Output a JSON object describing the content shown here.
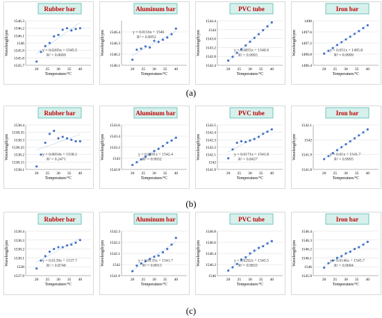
{
  "colors": {
    "title_text": "#c00000",
    "title_fill": "#d6f0ec",
    "title_border": "#4fb8ad",
    "point": "#4472c4",
    "trend": "#9dc3e6",
    "grid": "#d9d9d9"
  },
  "rows": [
    {
      "label": "(a)",
      "charts": [
        {
          "title": "Rubber bar",
          "x_range": [
            15,
            45
          ],
          "x_ticks": [
            "20",
            "25",
            "30",
            "35",
            "40"
          ],
          "y_range": [
            1545.7,
            1546.3
          ],
          "y_ticks": [
            "1545.7",
            "1545.8",
            "1545.9",
            "1546",
            "1546.1",
            "1546.2",
            "1546.3"
          ],
          "equation": "y = 0.0205x + 1545.5",
          "r2": "R² = 0.8009",
          "eq_pos": "lower"
        },
        {
          "title": "Aluminum bar",
          "x_range": [
            15,
            45
          ],
          "x_ticks": [
            "20",
            "25",
            "30",
            "35",
            "40"
          ],
          "y_range": [
            1546.1,
            1546.5
          ],
          "y_ticks": [
            "1546.1",
            "1546.2",
            "1546.3",
            "1546.4"
          ],
          "equation": "y = 0.0116x + 1546",
          "r2": "R² = 0.8952",
          "eq_pos": "upper"
        },
        {
          "title": "PVC tube",
          "x_range": [
            15,
            45
          ],
          "x_ticks": [
            "20",
            "25",
            "30",
            "35",
            "40"
          ],
          "y_range": [
            1542.4,
            1544.4
          ],
          "y_ticks": [
            "1542.4",
            "1542.8",
            "1543.2",
            "1543.6",
            "1544",
            "1544.4"
          ],
          "equation": "y = 0.0855x + 1540.9",
          "r2": "R² = 0.9993",
          "eq_pos": "lower"
        },
        {
          "title": "Iron bar",
          "x_range": [
            15,
            45
          ],
          "x_ticks": [
            "20",
            "25",
            "30",
            "35",
            "40"
          ],
          "y_range": [
            1496.4,
            1498
          ],
          "y_ticks": [
            "1496.4",
            "1496.8",
            "1497.2",
            "1497.6",
            "1498"
          ],
          "equation": "y = 0.051x + 1495.8",
          "r2": "R² = 0.9999",
          "eq_pos": "lower"
        }
      ]
    },
    {
      "label": "(b)",
      "charts": [
        {
          "title": "Rubber bar",
          "x_range": [
            15,
            45
          ],
          "x_ticks": [
            "20",
            "25",
            "30",
            "35",
            "40"
          ],
          "y_range": [
            1538.1,
            1538.4
          ],
          "y_ticks": [
            "1538.1",
            "1538.15",
            "1538.2",
            "1538.25",
            "1538.3",
            "1538.35",
            "1538.4"
          ],
          "equation": "y = 0.0054x + 1538.1",
          "r2": "R² = 0.2471",
          "eq_pos": "lower"
        },
        {
          "title": "Aluminum bar",
          "x_range": [
            15,
            45
          ],
          "x_ticks": [
            "20",
            "25",
            "30",
            "35",
            "40"
          ],
          "y_range": [
            1542.8,
            1543.6
          ],
          "y_ticks": [
            "1542.8",
            "1543",
            "1543.2",
            "1543.4",
            "1543.6"
          ],
          "equation": "y = 0.0241x + 1542.4",
          "r2": "R² = 0.9932",
          "eq_pos": "lower"
        },
        {
          "title": "PVC tube",
          "x_range": [
            15,
            45
          ],
          "x_ticks": [
            "20",
            "25",
            "30",
            "35",
            "40"
          ],
          "y_range": [
            1541.9,
            1542.5
          ],
          "y_ticks": [
            "1541.9",
            "1542",
            "1542.1",
            "1542.2",
            "1542.3",
            "1542.4",
            "1542.5"
          ],
          "equation": "y = 0.0171x + 1541.8",
          "r2": "R² = 0.8437",
          "eq_pos": "lower"
        },
        {
          "title": "Iron bar",
          "x_range": [
            15,
            45
          ],
          "x_ticks": [
            "20",
            "25",
            "30",
            "35",
            "40"
          ],
          "y_range": [
            1541.8,
            1542.1
          ],
          "y_ticks": [
            "1541.8",
            "1541.9",
            "1542",
            "1542.1"
          ],
          "equation": "y = 0.01x + 1541.7",
          "r2": "R² = 0.9995",
          "eq_pos": "lower"
        }
      ]
    },
    {
      "label": "(c)",
      "charts": [
        {
          "title": "Rubber bar",
          "x_range": [
            15,
            45
          ],
          "x_ticks": [
            "20",
            "25",
            "30",
            "35",
            "40"
          ],
          "y_range": [
            1537.9,
            1538.4
          ],
          "y_ticks": [
            "1537.9",
            "1538",
            "1538.1",
            "1538.2",
            "1538.3",
            "1538.4"
          ],
          "equation": "y = 0.0139x + 1537.7",
          "r2": "R² = 0.8748",
          "eq_pos": "lower"
        },
        {
          "title": "Aluminum bar",
          "x_range": [
            15,
            45
          ],
          "x_ticks": [
            "20",
            "25",
            "30",
            "35",
            "40"
          ],
          "y_range": [
            1541.9,
            1542.3
          ],
          "y_ticks": [
            "1541.9",
            "1542",
            "1542.1",
            "1542.2",
            "1542.3"
          ],
          "equation": "y = 0.0135x + 1541.7",
          "r2": "R² = 0.8913",
          "eq_pos": "lower"
        },
        {
          "title": "PVC tube",
          "x_range": [
            15,
            45
          ],
          "x_ticks": [
            "20",
            "25",
            "30",
            "35",
            "40"
          ],
          "y_range": [
            1546,
            1546.8
          ],
          "y_ticks": [
            "1546",
            "1546.2",
            "1546.4",
            "1546.6",
            "1546.8"
          ],
          "equation": "y = 0.0292x + 1545.5",
          "r2": "R² = 0.9833",
          "eq_pos": "lower"
        },
        {
          "title": "Iron bar",
          "x_range": [
            15,
            45
          ],
          "x_ticks": [
            "20",
            "25",
            "30",
            "35",
            "40"
          ],
          "y_range": [
            1545.9,
            1546.4
          ],
          "y_ticks": [
            "1545.9",
            "1546",
            "1546.1",
            "1546.2",
            "1546.3",
            "1546.4"
          ],
          "equation": "y = 0.0146x + 1545.7",
          "r2": "R² = 0.9684",
          "eq_pos": "lower"
        }
      ]
    }
  ],
  "chart_data": [
    {
      "type": "scatter",
      "title": "Rubber bar",
      "xlabel": "Temperature/°C",
      "ylabel": "Wavelength/pm",
      "xlim": [
        15,
        45
      ],
      "ylim": [
        1545.7,
        1546.3
      ],
      "grid": true,
      "trendline": "linear",
      "x": [
        20,
        22,
        24,
        26,
        28,
        30,
        32,
        34,
        36,
        38,
        40
      ],
      "y": [
        1545.75,
        1545.88,
        1545.96,
        1546.0,
        1546.09,
        1546.11,
        1546.18,
        1546.2,
        1546.17,
        1546.19,
        1546.2
      ]
    },
    {
      "type": "scatter",
      "title": "Aluminum bar",
      "xlabel": "Temperature/°C",
      "ylabel": "Wavelength/pm",
      "xlim": [
        15,
        45
      ],
      "ylim": [
        1546.1,
        1546.5
      ],
      "grid": true,
      "trendline": "linear",
      "x": [
        20,
        22,
        24,
        26,
        28,
        30,
        32,
        34,
        36,
        38,
        40
      ],
      "y": [
        1546.15,
        1546.24,
        1546.25,
        1546.27,
        1546.26,
        1546.32,
        1546.31,
        1546.33,
        1546.35,
        1546.38,
        1546.43
      ]
    },
    {
      "type": "scatter",
      "title": "PVC tube",
      "xlabel": "Temperature/°C",
      "ylabel": "Wavelength/pm",
      "xlim": [
        15,
        45
      ],
      "ylim": [
        1542.4,
        1544.4
      ],
      "grid": true,
      "trendline": "linear",
      "x": [
        20,
        22,
        24,
        26,
        28,
        30,
        32,
        34,
        36,
        38,
        40
      ],
      "y": [
        1542.61,
        1542.78,
        1542.96,
        1543.12,
        1543.29,
        1543.46,
        1543.63,
        1543.8,
        1543.98,
        1544.15,
        1544.33
      ]
    },
    {
      "type": "scatter",
      "title": "Iron bar",
      "xlabel": "Temperature/°C",
      "ylabel": "Wavelength/pm",
      "xlim": [
        15,
        45
      ],
      "ylim": [
        1496.4,
        1498
      ],
      "grid": true,
      "trendline": "linear",
      "x": [
        20,
        22,
        24,
        26,
        28,
        30,
        32,
        34,
        36,
        38,
        40
      ],
      "y": [
        1496.82,
        1496.92,
        1497.02,
        1497.13,
        1497.23,
        1497.33,
        1497.43,
        1497.53,
        1497.63,
        1497.74,
        1497.84
      ]
    },
    {
      "type": "scatter",
      "title": "Rubber bar",
      "xlabel": "Temperature/°C",
      "ylabel": "Wavelength/pm",
      "xlim": [
        15,
        45
      ],
      "ylim": [
        1538.1,
        1538.4
      ],
      "grid": true,
      "trendline": "linear",
      "x": [
        20,
        22,
        24,
        26,
        28,
        30,
        32,
        34,
        36,
        38,
        40
      ],
      "y": [
        1538.12,
        1538.2,
        1538.28,
        1538.34,
        1538.36,
        1538.31,
        1538.32,
        1538.31,
        1538.3,
        1538.29,
        1538.29
      ]
    },
    {
      "type": "scatter",
      "title": "Aluminum bar",
      "xlabel": "Temperature/°C",
      "ylabel": "Wavelength/pm",
      "xlim": [
        15,
        45
      ],
      "ylim": [
        1542.8,
        1543.6
      ],
      "grid": true,
      "trendline": "linear",
      "x": [
        20,
        22,
        24,
        26,
        28,
        30,
        32,
        34,
        36,
        38,
        40
      ],
      "y": [
        1542.88,
        1542.93,
        1542.98,
        1543.03,
        1543.07,
        1543.13,
        1543.17,
        1543.22,
        1543.28,
        1543.32,
        1543.37
      ]
    },
    {
      "type": "scatter",
      "title": "PVC tube",
      "xlabel": "Temperature/°C",
      "ylabel": "Wavelength/pm",
      "xlim": [
        15,
        45
      ],
      "ylim": [
        1541.9,
        1542.5
      ],
      "grid": true,
      "trendline": "linear",
      "x": [
        20,
        22,
        24,
        26,
        28,
        30,
        32,
        34,
        36,
        38,
        40
      ],
      "y": [
        1542.05,
        1542.17,
        1542.26,
        1542.28,
        1542.27,
        1542.29,
        1542.31,
        1542.34,
        1542.38,
        1542.41,
        1542.44
      ]
    },
    {
      "type": "scatter",
      "title": "Iron bar",
      "xlabel": "Temperature/°C",
      "ylabel": "Wavelength/pm",
      "xlim": [
        15,
        45
      ],
      "ylim": [
        1541.8,
        1542.1
      ],
      "grid": true,
      "trendline": "linear",
      "x": [
        20,
        22,
        24,
        26,
        28,
        30,
        32,
        34,
        36,
        38,
        40
      ],
      "y": [
        1541.87,
        1541.89,
        1541.91,
        1541.93,
        1541.95,
        1541.97,
        1541.99,
        1542.01,
        1542.03,
        1542.05,
        1542.07
      ]
    },
    {
      "type": "scatter",
      "title": "Rubber bar",
      "xlabel": "Temperature/°C",
      "ylabel": "Wavelength/pm",
      "xlim": [
        15,
        45
      ],
      "ylim": [
        1537.9,
        1538.4
      ],
      "grid": true,
      "trendline": "linear",
      "x": [
        20,
        22,
        24,
        26,
        28,
        30,
        32,
        34,
        36,
        38,
        40
      ],
      "y": [
        1537.98,
        1538.07,
        1538.12,
        1538.17,
        1538.2,
        1538.22,
        1538.22,
        1538.24,
        1538.25,
        1538.27,
        1538.3
      ]
    },
    {
      "type": "scatter",
      "title": "Aluminum bar",
      "xlabel": "Temperature/°C",
      "ylabel": "Wavelength/pm",
      "xlim": [
        15,
        45
      ],
      "ylim": [
        1541.9,
        1542.3
      ],
      "grid": true,
      "trendline": "linear",
      "x": [
        20,
        22,
        24,
        26,
        28,
        30,
        32,
        34,
        36,
        38,
        40
      ],
      "y": [
        1541.94,
        1541.99,
        1542.01,
        1542.03,
        1542.05,
        1542.07,
        1542.08,
        1542.11,
        1542.14,
        1542.18,
        1542.24
      ]
    },
    {
      "type": "scatter",
      "title": "PVC tube",
      "xlabel": "Temperature/°C",
      "ylabel": "Wavelength/pm",
      "xlim": [
        15,
        45
      ],
      "ylim": [
        1546,
        1546.8
      ],
      "grid": true,
      "trendline": "linear",
      "x": [
        20,
        22,
        24,
        26,
        28,
        30,
        32,
        34,
        36,
        38,
        40
      ],
      "y": [
        1546.09,
        1546.15,
        1546.21,
        1546.29,
        1546.33,
        1546.4,
        1546.45,
        1546.5,
        1546.53,
        1546.58,
        1546.62
      ]
    },
    {
      "type": "scatter",
      "title": "Iron bar",
      "xlabel": "Temperature/°C",
      "ylabel": "Wavelength/pm",
      "xlim": [
        15,
        45
      ],
      "ylim": [
        1545.9,
        1546.4
      ],
      "grid": true,
      "trendline": "linear",
      "x": [
        20,
        22,
        24,
        26,
        28,
        30,
        32,
        34,
        36,
        38,
        40
      ],
      "y": [
        1545.99,
        1546.04,
        1546.07,
        1546.1,
        1546.12,
        1546.15,
        1546.17,
        1546.2,
        1546.22,
        1546.25,
        1546.28
      ]
    }
  ]
}
